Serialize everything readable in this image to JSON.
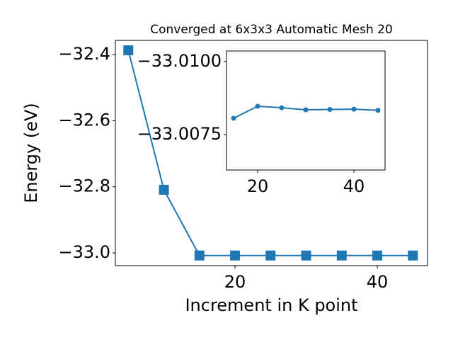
{
  "chart_data": [
    {
      "type": "line",
      "title": "Converged at 6x3x3 Automatic Mesh 20",
      "xlabel": "Increment in K point",
      "ylabel": "Energy (eV)",
      "x": [
        5,
        10,
        15,
        20,
        25,
        30,
        35,
        40,
        45
      ],
      "series": [
        {
          "color": "#1f77b4",
          "marker": "square",
          "values": [
            -32.387,
            -32.809,
            -33.008,
            -33.008,
            -33.008,
            -33.008,
            -33.008,
            -33.008,
            -33.008
          ]
        }
      ],
      "xlim": [
        3.18,
        47.06
      ],
      "ylim": [
        -33.0386,
        -32.357
      ],
      "xticks": [
        20,
        40
      ],
      "yticks": [
        {
          "value": -32.4,
          "label": "−32.4"
        },
        {
          "value": -32.6,
          "label": "−32.6"
        },
        {
          "value": -32.8,
          "label": "−32.8"
        },
        {
          "value": -33.0,
          "label": "−33.0"
        }
      ]
    },
    {
      "type": "line",
      "x": [
        15,
        20,
        25,
        30,
        35,
        40,
        45
      ],
      "series": [
        {
          "color": "#1f77b4",
          "marker": "circle",
          "values": [
            -33.00806,
            -33.00847,
            -33.00842,
            -33.00835,
            -33.00836,
            -33.00837,
            -33.00833
          ]
        }
      ],
      "xlim": [
        13.53,
        46.47
      ],
      "ylim": [
        -33.00629,
        -33.01036
      ],
      "inverted_y": true,
      "xticks": [
        20,
        40
      ],
      "yticks": [
        {
          "value": -33.01,
          "label": "−33.0100"
        },
        {
          "value": -33.0075,
          "label": "−33.0075"
        }
      ]
    }
  ]
}
